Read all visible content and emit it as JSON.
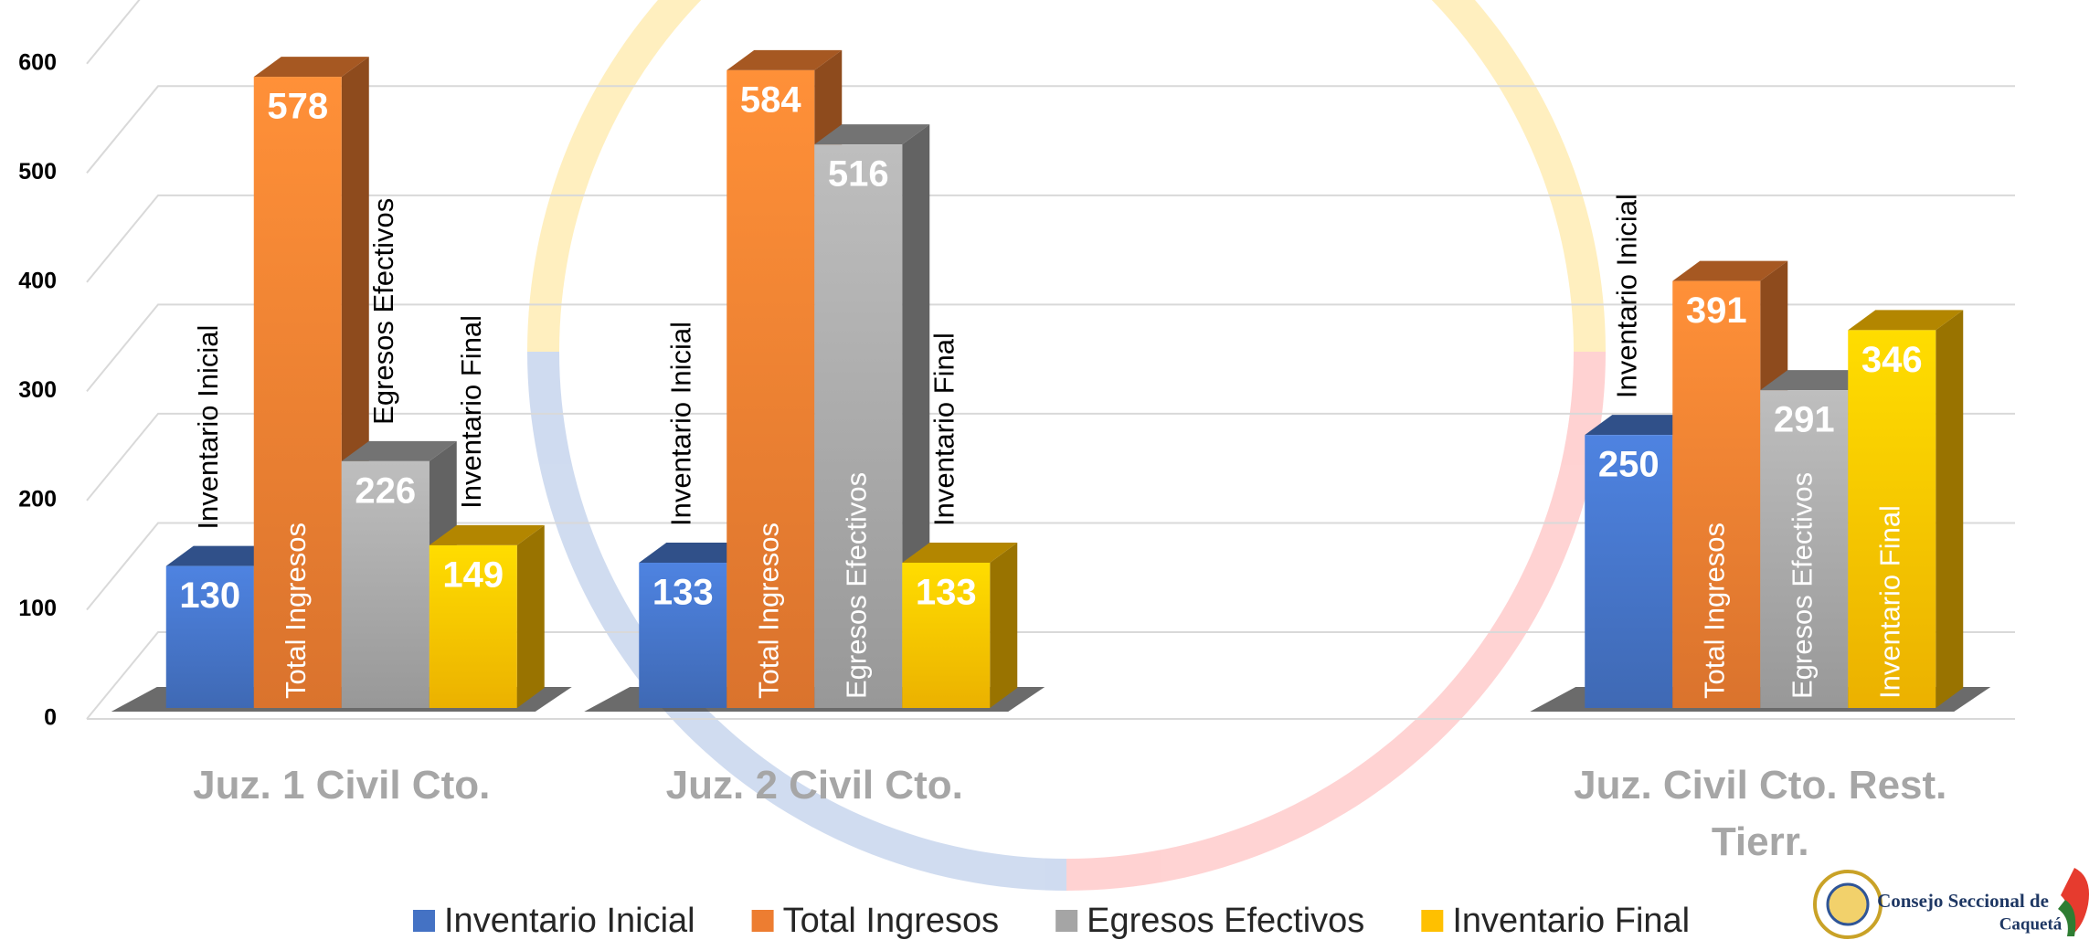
{
  "chart_data": {
    "type": "bar3d",
    "categories": [
      "Juz. 1 Civil Cto.",
      "Juz. 2 Civil Cto.",
      null,
      "Juz. Civil Cto. Rest. Tierr."
    ],
    "series": [
      {
        "name": "Inventario Inicial",
        "color": "#4472c4",
        "values": [
          130,
          133,
          null,
          250
        ]
      },
      {
        "name": "Total Ingresos",
        "color": "#ed7d31",
        "values": [
          578,
          584,
          null,
          391
        ]
      },
      {
        "name": "Egresos Efectivos",
        "color": "#a5a5a5",
        "values": [
          226,
          516,
          null,
          291
        ]
      },
      {
        "name": "Inventario Final",
        "color": "#ffc000",
        "values": [
          149,
          133,
          null,
          346
        ]
      }
    ],
    "ylim": [
      0,
      650
    ],
    "yticks": [
      0,
      100,
      200,
      300,
      400,
      500,
      600
    ],
    "grid": true,
    "legend": "bottom",
    "annotations": [
      "Consejo Seccional de",
      "Caquetá"
    ]
  }
}
